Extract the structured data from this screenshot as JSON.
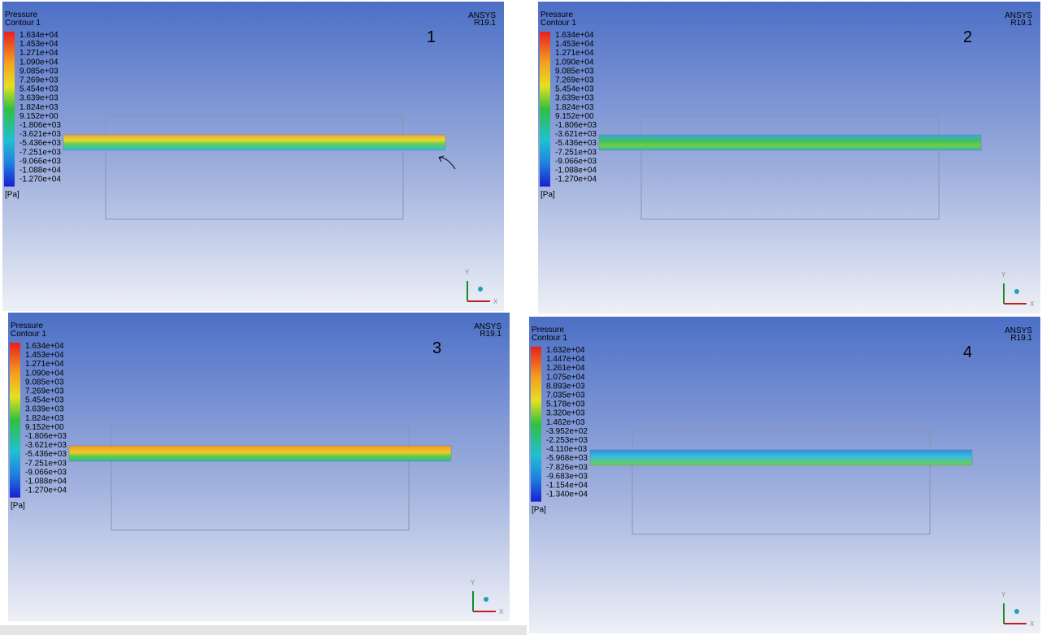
{
  "panels": [
    {
      "number": "1",
      "title": "Pressure",
      "subtitle": "Contour 1",
      "brand": "ANSYS",
      "version": "R19.1",
      "unit": "[Pa]",
      "axis_y": "Y",
      "axis_x": "X",
      "legend": [
        "1.634e+04",
        "1.453e+04",
        "1.271e+04",
        "1.090e+04",
        "9.085e+03",
        "7.269e+03",
        "5.454e+03",
        "3.639e+03",
        "1.824e+03",
        "9.152e+00",
        "-1.806e+03",
        "-3.621e+03",
        "-5.436e+03",
        "-7.251e+03",
        "-9.066e+03",
        "-1.088e+04",
        "-1.270e+04"
      ]
    },
    {
      "number": "2",
      "title": "Pressure",
      "subtitle": "Contour 1",
      "brand": "ANSYS",
      "version": "R19.1",
      "unit": "[Pa]",
      "axis_y": "Y",
      "axis_x": "X",
      "legend": [
        "1.634e+04",
        "1.453e+04",
        "1.271e+04",
        "1.090e+04",
        "9.085e+03",
        "7.269e+03",
        "5.454e+03",
        "3.639e+03",
        "1.824e+03",
        "9.152e+00",
        "-1.806e+03",
        "-3.621e+03",
        "-5.436e+03",
        "-7.251e+03",
        "-9.066e+03",
        "-1.088e+04",
        "-1.270e+04"
      ]
    },
    {
      "number": "3",
      "title": "Pressure",
      "subtitle": "Contour 1",
      "brand": "ANSYS",
      "version": "R19.1",
      "unit": "[Pa]",
      "axis_y": "Y",
      "axis_x": "X",
      "legend": [
        "1.634e+04",
        "1.453e+04",
        "1.271e+04",
        "1.090e+04",
        "9.085e+03",
        "7.269e+03",
        "5.454e+03",
        "3.639e+03",
        "1.824e+03",
        "9.152e+00",
        "-1.806e+03",
        "-3.621e+03",
        "-5.436e+03",
        "-7.251e+03",
        "-9.066e+03",
        "-1.088e+04",
        "-1.270e+04"
      ]
    },
    {
      "number": "4",
      "title": "Pressure",
      "subtitle": "Contour 1",
      "brand": "ANSYS",
      "version": "R19.1",
      "unit": "[Pa]",
      "axis_y": "Y",
      "axis_x": "X",
      "legend": [
        "1.632e+04",
        "1.447e+04",
        "1.261e+04",
        "1.075e+04",
        "8.893e+03",
        "7.035e+03",
        "5.178e+03",
        "3.320e+03",
        "1.462e+03",
        "-3.952e+02",
        "-2.253e+03",
        "-4.110e+03",
        "-5.968e+03",
        "-7.826e+03",
        "-9.683e+03",
        "-1.154e+04",
        "-1.340e+04"
      ]
    }
  ]
}
